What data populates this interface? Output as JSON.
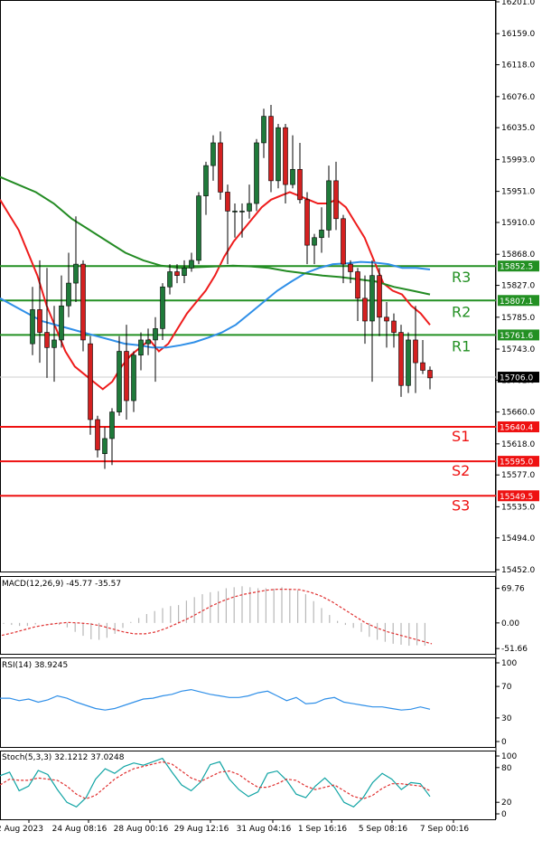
{
  "colors": {
    "bull": "#1f7a3a",
    "bear": "#d42020",
    "ma_fast": "#ee1c1c",
    "ma_mid": "#2f8fe8",
    "ma_slow": "#238b23",
    "resistance": "#239023",
    "support": "#ee1111",
    "current": "#000000",
    "macd_hist": "#b8b8b8",
    "macd_signal": "#e03030",
    "rsi": "#2f8fe8",
    "stoch_main": "#10a4a4",
    "stoch_signal": "#e03030"
  },
  "chart_data": [
    {
      "type": "candlestick",
      "ylim": [
        15452.0,
        16201.0
      ],
      "y_ticks": [
        "16201.0",
        "16159.0",
        "16118.0",
        "16076.0",
        "16035.0",
        "15993.0",
        "15951.0",
        "15910.0",
        "15868.0",
        "15827.0",
        "15785.0",
        "15743.0",
        "15702.0",
        "15660.0",
        "15618.0",
        "15577.0",
        "15535.0",
        "15494.0",
        "15452.0"
      ],
      "x_labels": [
        "2 Aug 2023",
        "24 Aug 08:16",
        "28 Aug 00:16",
        "29 Aug 12:16",
        "31 Aug 04:16",
        "1 Sep 16:16",
        "5 Sep 08:16",
        "7 Sep 00:16"
      ],
      "current_price": "15706.0",
      "levels": [
        {
          "name": "R3",
          "value": "15852.5",
          "kind": "resistance"
        },
        {
          "name": "R2",
          "value": "15807.1",
          "kind": "resistance"
        },
        {
          "name": "R1",
          "value": "15761.6",
          "kind": "resistance"
        },
        {
          "name": "S1",
          "value": "15640.4",
          "kind": "support"
        },
        {
          "name": "S2",
          "value": "15595.0",
          "kind": "support"
        },
        {
          "name": "S3",
          "value": "15549.5",
          "kind": "support"
        }
      ],
      "candles": [
        {
          "o": 15750,
          "h": 15825,
          "l": 15735,
          "c": 15795
        },
        {
          "o": 15795,
          "h": 15860,
          "l": 15725,
          "c": 15765
        },
        {
          "o": 15765,
          "h": 15850,
          "l": 15705,
          "c": 15745
        },
        {
          "o": 15745,
          "h": 15800,
          "l": 15700,
          "c": 15755
        },
        {
          "o": 15755,
          "h": 15840,
          "l": 15745,
          "c": 15800
        },
        {
          "o": 15800,
          "h": 15870,
          "l": 15785,
          "c": 15830
        },
        {
          "o": 15830,
          "h": 15918,
          "l": 15805,
          "c": 15855
        },
        {
          "o": 15855,
          "h": 15860,
          "l": 15740,
          "c": 15755
        },
        {
          "o": 15750,
          "h": 15760,
          "l": 15630,
          "c": 15650
        },
        {
          "o": 15650,
          "h": 15655,
          "l": 15600,
          "c": 15610
        },
        {
          "o": 15605,
          "h": 15640,
          "l": 15585,
          "c": 15625
        },
        {
          "o": 15625,
          "h": 15665,
          "l": 15590,
          "c": 15660
        },
        {
          "o": 15660,
          "h": 15760,
          "l": 15655,
          "c": 15740
        },
        {
          "o": 15740,
          "h": 15775,
          "l": 15650,
          "c": 15675
        },
        {
          "o": 15675,
          "h": 15740,
          "l": 15660,
          "c": 15735
        },
        {
          "o": 15735,
          "h": 15765,
          "l": 15715,
          "c": 15755
        },
        {
          "o": 15750,
          "h": 15770,
          "l": 15735,
          "c": 15755
        },
        {
          "o": 15755,
          "h": 15785,
          "l": 15700,
          "c": 15770
        },
        {
          "o": 15770,
          "h": 15830,
          "l": 15755,
          "c": 15825
        },
        {
          "o": 15825,
          "h": 15855,
          "l": 15815,
          "c": 15845
        },
        {
          "o": 15845,
          "h": 15855,
          "l": 15830,
          "c": 15840
        },
        {
          "o": 15840,
          "h": 15860,
          "l": 15830,
          "c": 15850
        },
        {
          "o": 15850,
          "h": 15870,
          "l": 15845,
          "c": 15860
        },
        {
          "o": 15860,
          "h": 15950,
          "l": 15855,
          "c": 15945
        },
        {
          "o": 15945,
          "h": 15990,
          "l": 15920,
          "c": 15985
        },
        {
          "o": 15985,
          "h": 16025,
          "l": 15965,
          "c": 16015
        },
        {
          "o": 16015,
          "h": 16030,
          "l": 15940,
          "c": 15950
        },
        {
          "o": 15950,
          "h": 15960,
          "l": 15855,
          "c": 15925
        },
        {
          "o": 15925,
          "h": 15935,
          "l": 15890,
          "c": 15925
        },
        {
          "o": 15925,
          "h": 15935,
          "l": 15890,
          "c": 15925
        },
        {
          "o": 15925,
          "h": 15960,
          "l": 15915,
          "c": 15935
        },
        {
          "o": 15935,
          "h": 16020,
          "l": 15925,
          "c": 16015
        },
        {
          "o": 16015,
          "h": 16060,
          "l": 15995,
          "c": 16050
        },
        {
          "o": 16050,
          "h": 16065,
          "l": 15950,
          "c": 15965
        },
        {
          "o": 15965,
          "h": 16040,
          "l": 15955,
          "c": 16035
        },
        {
          "o": 16035,
          "h": 16040,
          "l": 15935,
          "c": 15960
        },
        {
          "o": 15960,
          "h": 16025,
          "l": 15955,
          "c": 15980
        },
        {
          "o": 15980,
          "h": 16015,
          "l": 15935,
          "c": 15940
        },
        {
          "o": 15940,
          "h": 15950,
          "l": 15855,
          "c": 15880
        },
        {
          "o": 15880,
          "h": 15895,
          "l": 15855,
          "c": 15890
        },
        {
          "o": 15890,
          "h": 15930,
          "l": 15870,
          "c": 15900
        },
        {
          "o": 15900,
          "h": 15985,
          "l": 15890,
          "c": 15965
        },
        {
          "o": 15965,
          "h": 15990,
          "l": 15900,
          "c": 15915
        },
        {
          "o": 15915,
          "h": 15920,
          "l": 15830,
          "c": 15855
        },
        {
          "o": 15855,
          "h": 15860,
          "l": 15830,
          "c": 15845
        },
        {
          "o": 15845,
          "h": 15850,
          "l": 15780,
          "c": 15810
        },
        {
          "o": 15810,
          "h": 15840,
          "l": 15750,
          "c": 15780
        },
        {
          "o": 15780,
          "h": 15860,
          "l": 15700,
          "c": 15840
        },
        {
          "o": 15840,
          "h": 15850,
          "l": 15760,
          "c": 15785
        },
        {
          "o": 15785,
          "h": 15805,
          "l": 15745,
          "c": 15780
        },
        {
          "o": 15780,
          "h": 15790,
          "l": 15745,
          "c": 15765
        },
        {
          "o": 15765,
          "h": 15775,
          "l": 15680,
          "c": 15695
        },
        {
          "o": 15695,
          "h": 15765,
          "l": 15685,
          "c": 15755
        },
        {
          "o": 15755,
          "h": 15800,
          "l": 15685,
          "c": 15725
        },
        {
          "o": 15725,
          "h": 15755,
          "l": 15710,
          "c": 15715
        },
        {
          "o": 15715,
          "h": 15720,
          "l": 15690,
          "c": 15705
        }
      ],
      "series": [
        {
          "values": [
            15940,
            15920,
            15900,
            15870,
            15840,
            15800,
            15770,
            15740,
            15720,
            15710,
            15700,
            15690,
            15700,
            15720,
            15735,
            15745,
            15755,
            15740,
            15750,
            15770,
            15790,
            15805,
            15820,
            15840,
            15865,
            15885,
            15900,
            15915,
            15930,
            15940,
            15945,
            15950,
            15945,
            15940,
            15935,
            15935,
            15940,
            15930,
            15910,
            15890,
            15860,
            15830,
            15820,
            15815,
            15800,
            15790,
            15775
          ]
        },
        {
          "values": [
            15810,
            15800,
            15790,
            15780,
            15775,
            15770,
            15765,
            15760,
            15755,
            15750,
            15748,
            15745,
            15745,
            15748,
            15752,
            15758,
            15765,
            15775,
            15790,
            15805,
            15820,
            15832,
            15843,
            15850,
            15855,
            15856,
            15858,
            15857,
            15855,
            15850,
            15850,
            15848
          ]
        },
        {
          "values": [
            15970,
            15960,
            15950,
            15935,
            15915,
            15900,
            15885,
            15870,
            15860,
            15853,
            15850,
            15851,
            15852,
            15853,
            15852,
            15850,
            15846,
            15843,
            15840,
            15838,
            15835,
            15832,
            15825,
            15820,
            15815
          ]
        }
      ]
    },
    {
      "type": "bar",
      "label": "MACD(12,26,9) -45.77 -35.57",
      "y_ticks": [
        "69.76",
        "0.00",
        "-51.66"
      ],
      "ylim": [
        -55,
        80
      ],
      "values": [
        -2,
        -4,
        -6,
        -6,
        -3,
        0,
        -1,
        -4,
        -9,
        -18,
        -26,
        -33,
        -34,
        -30,
        -22,
        -10,
        2,
        10,
        18,
        24,
        30,
        34,
        36,
        45,
        52,
        58,
        62,
        64,
        70,
        72,
        74,
        72,
        70,
        70,
        69,
        72,
        68,
        66,
        58,
        44,
        30,
        16,
        4,
        -4,
        -10,
        -18,
        -28,
        -34,
        -38,
        -42,
        -44,
        -46,
        -45,
        -46
      ],
      "series": [
        {
          "values": [
            -25,
            -20,
            -14,
            -8,
            -4,
            -1,
            1,
            0,
            -2,
            -6,
            -12,
            -18,
            -22,
            -22,
            -18,
            -10,
            0,
            10,
            22,
            34,
            44,
            52,
            58,
            62,
            66,
            68,
            68,
            67,
            62,
            54,
            42,
            28,
            14,
            0,
            -10,
            -18,
            -24,
            -30,
            -36,
            -42
          ]
        }
      ]
    },
    {
      "type": "line",
      "label": "RSI(14) 38.9245",
      "y_ticks": [
        "100",
        "70",
        "30",
        "0"
      ],
      "ylim": [
        0,
        100
      ],
      "series": [
        {
          "values": [
            55,
            55,
            52,
            54,
            50,
            53,
            58,
            55,
            50,
            46,
            42,
            40,
            42,
            46,
            50,
            54,
            55,
            58,
            60,
            64,
            66,
            63,
            60,
            58,
            56,
            56,
            58,
            62,
            64,
            58,
            52,
            56,
            48,
            49,
            54,
            56,
            50,
            48,
            46,
            44,
            44,
            42,
            40,
            41,
            44,
            41
          ]
        }
      ]
    },
    {
      "type": "line",
      "label": "Stoch(5,3,3) 32.1212 37.0248",
      "y_ticks": [
        "100",
        "80",
        "20",
        "0"
      ],
      "ylim": [
        0,
        100
      ],
      "series": [
        {
          "values": [
            66,
            72,
            40,
            48,
            75,
            68,
            42,
            20,
            12,
            28,
            60,
            78,
            70,
            82,
            88,
            84,
            90,
            96,
            72,
            50,
            40,
            55,
            85,
            90,
            60,
            42,
            30,
            38,
            70,
            74,
            58,
            34,
            28,
            48,
            62,
            46,
            20,
            12,
            28,
            54,
            70,
            60,
            42,
            54,
            52,
            30
          ]
        },
        {
          "values": [
            50,
            60,
            58,
            58,
            62,
            60,
            58,
            48,
            34,
            26,
            32,
            46,
            60,
            70,
            78,
            82,
            86,
            90,
            86,
            74,
            62,
            56,
            64,
            72,
            74,
            68,
            56,
            46,
            46,
            52,
            60,
            58,
            48,
            42,
            46,
            50,
            40,
            30,
            26,
            32,
            44,
            52,
            52,
            50,
            48,
            40
          ]
        }
      ]
    }
  ]
}
